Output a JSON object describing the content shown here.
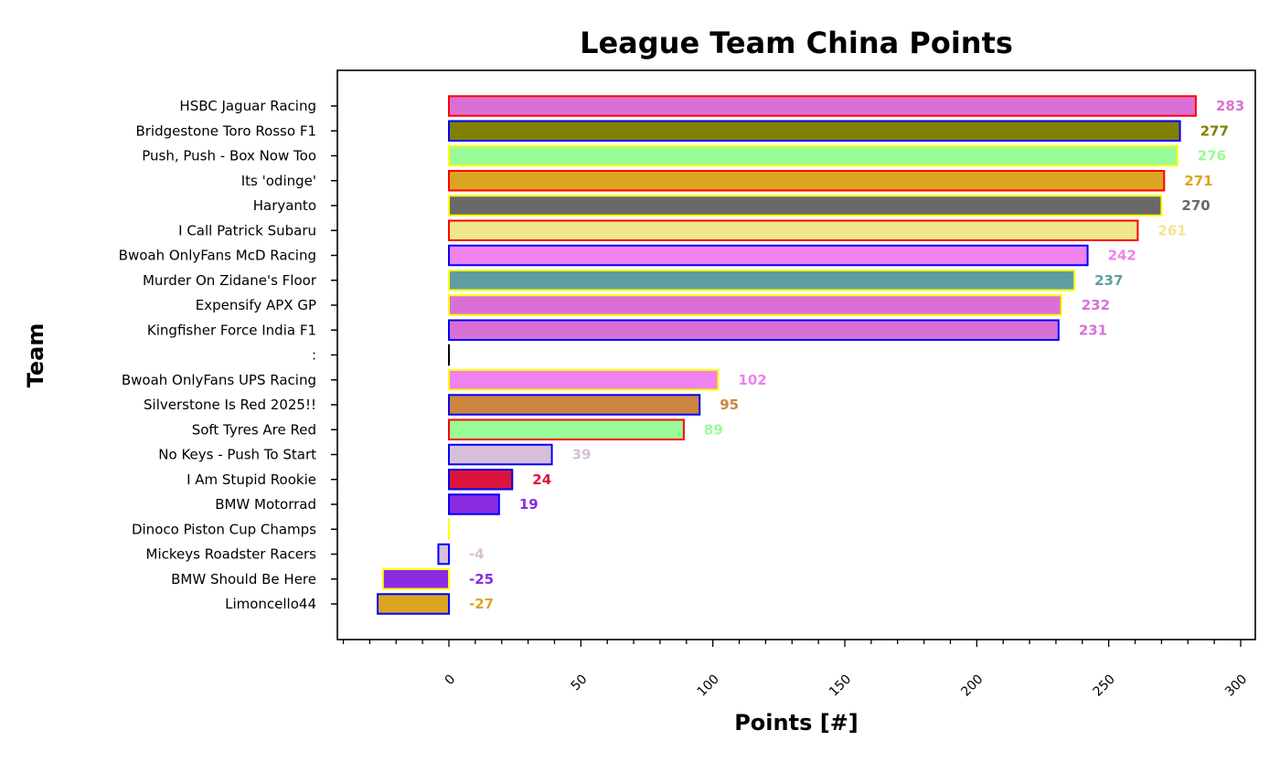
{
  "chart_data": {
    "type": "bar",
    "orientation": "horizontal",
    "title": "League Team China Points",
    "xlabel": "Points [#]",
    "ylabel": "Team",
    "xlim": [
      -42,
      305
    ],
    "xticks": [
      0,
      50,
      100,
      150,
      200,
      250,
      300
    ],
    "grid": false,
    "categories": [
      "HSBC Jaguar Racing",
      "Bridgestone Toro Rosso F1",
      "Push, Push - Box Now Too",
      "Its 'odinge'",
      "Haryanto",
      "I Call Patrick Subaru",
      "Bwoah OnlyFans McD Racing",
      "Murder On Zidane's Floor",
      "Expensify APX GP",
      "Kingfisher Force India F1",
      ":",
      "Bwoah OnlyFans UPS Racing",
      "Silverstone Is Red 2025!!",
      "Soft Tyres Are Red",
      "No Keys - Push To Start",
      "I Am Stupid Rookie",
      "BMW Motorrad",
      "Dinoco Piston Cup Champs",
      "Mickeys Roadster Racers",
      "BMW Should Be Here",
      "Limoncello44"
    ],
    "values": [
      283,
      277,
      276,
      271,
      270,
      261,
      242,
      237,
      232,
      231,
      0,
      102,
      95,
      89,
      39,
      24,
      19,
      0,
      -4,
      -25,
      -27
    ],
    "data_labels": [
      "283",
      "277",
      "276",
      "271",
      "270",
      "261",
      "242",
      "237",
      "232",
      "231",
      "",
      "102",
      "95",
      "89",
      "39",
      "24",
      "19",
      "",
      "-4",
      "-25",
      "-27"
    ],
    "fill_colors": [
      "#da70d6",
      "#808000",
      "#98fb98",
      "#daa520",
      "#696969",
      "#f0e68c",
      "#ee82ee",
      "#5f9ea0",
      "#da70d6",
      "#da70d6",
      "#000000",
      "#ee82ee",
      "#cd853f",
      "#98fb98",
      "#d8bfd8",
      "#dc143c",
      "#8a2be2",
      "#ffff00",
      "#d8bfd8",
      "#8a2be2",
      "#daa520"
    ],
    "edge_colors": [
      "#ff0000",
      "#0000ff",
      "#ffff00",
      "#ff0000",
      "#ffff00",
      "#ff0000",
      "#0000ff",
      "#ffff00",
      "#ffff00",
      "#0000ff",
      "#000000",
      "#ffff00",
      "#0000ff",
      "#ff0000",
      "#0000ff",
      "#0000ff",
      "#0000ff",
      "#ffff00",
      "#0000ff",
      "#ffff00",
      "#0000ff"
    ]
  }
}
